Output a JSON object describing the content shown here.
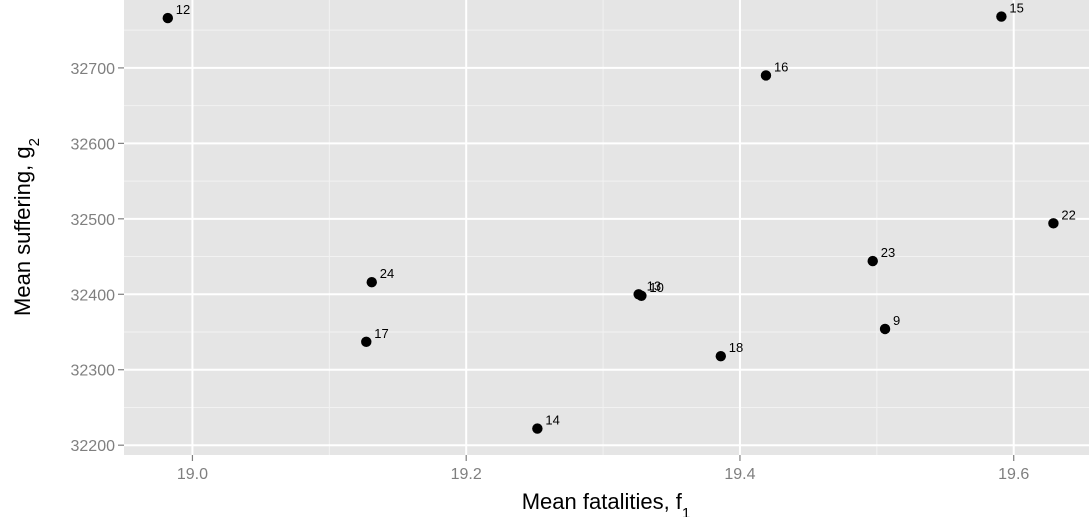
{
  "chart_data": {
    "type": "scatter",
    "xlabel": {
      "main": "Mean fatalities, f",
      "sub": "1"
    },
    "ylabel": {
      "main": "Mean suffering, g",
      "sub": "2"
    },
    "xlim": [
      18.95,
      19.655
    ],
    "ylim": [
      32187,
      32790
    ],
    "x_ticks": [
      19.0,
      19.2,
      19.4,
      19.6
    ],
    "x_tick_labels": [
      "19.0",
      "19.2",
      "19.4",
      "19.6"
    ],
    "y_ticks": [
      32200,
      32300,
      32400,
      32500,
      32600,
      32700
    ],
    "y_tick_labels": [
      "32200",
      "32300",
      "32400",
      "32500",
      "32600",
      "32700"
    ],
    "grid": true,
    "points": [
      {
        "label": "12",
        "x": 18.982,
        "y": 32766
      },
      {
        "label": "15",
        "x": 19.591,
        "y": 32768
      },
      {
        "label": "16",
        "x": 19.419,
        "y": 32690
      },
      {
        "label": "22",
        "x": 19.629,
        "y": 32494
      },
      {
        "label": "23",
        "x": 19.497,
        "y": 32444
      },
      {
        "label": "24",
        "x": 19.131,
        "y": 32416
      },
      {
        "label": "13",
        "x": 19.326,
        "y": 32400
      },
      {
        "label": "10",
        "x": 19.328,
        "y": 32398
      },
      {
        "label": "9",
        "x": 19.506,
        "y": 32354
      },
      {
        "label": "17",
        "x": 19.127,
        "y": 32337
      },
      {
        "label": "18",
        "x": 19.386,
        "y": 32318
      },
      {
        "label": "14",
        "x": 19.252,
        "y": 32222
      }
    ]
  }
}
